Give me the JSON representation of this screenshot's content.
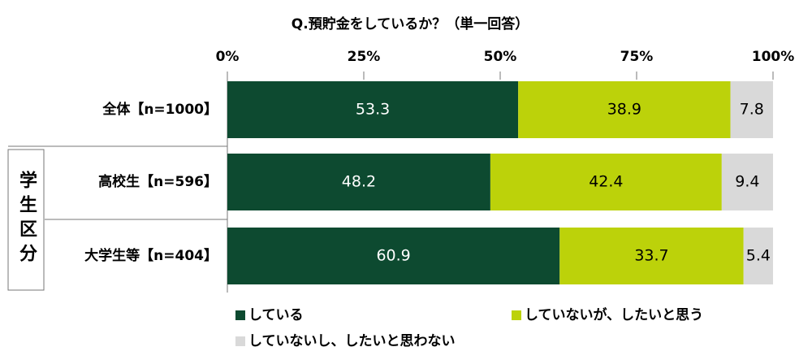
{
  "chart_data": {
    "type": "stacked-bar-horizontal",
    "title": "Q.預貯金をしているか？（単一回答）",
    "categories": [
      "全体【n=1000】",
      "高校生【n=596】",
      "大学生等【n=404】"
    ],
    "group_label": "学生区分",
    "series": [
      {
        "name": "している",
        "color": "#0d4a30",
        "values": [
          53.3,
          48.2,
          60.9
        ]
      },
      {
        "name": "していないが、したいと思う",
        "color": "#bcd20a",
        "values": [
          38.9,
          42.4,
          33.7
        ]
      },
      {
        "name": "していないし、したいと思わない",
        "color": "#d9d9d9",
        "values": [
          7.8,
          9.4,
          5.4
        ]
      }
    ],
    "xlim": [
      0,
      100
    ],
    "xticks": [
      {
        "value": 0,
        "label": "0%"
      },
      {
        "value": 25,
        "label": "25%"
      },
      {
        "value": 50,
        "label": "50%"
      },
      {
        "value": 75,
        "label": "75%"
      },
      {
        "value": 100,
        "label": "100%"
      }
    ],
    "legend": "bottom"
  }
}
